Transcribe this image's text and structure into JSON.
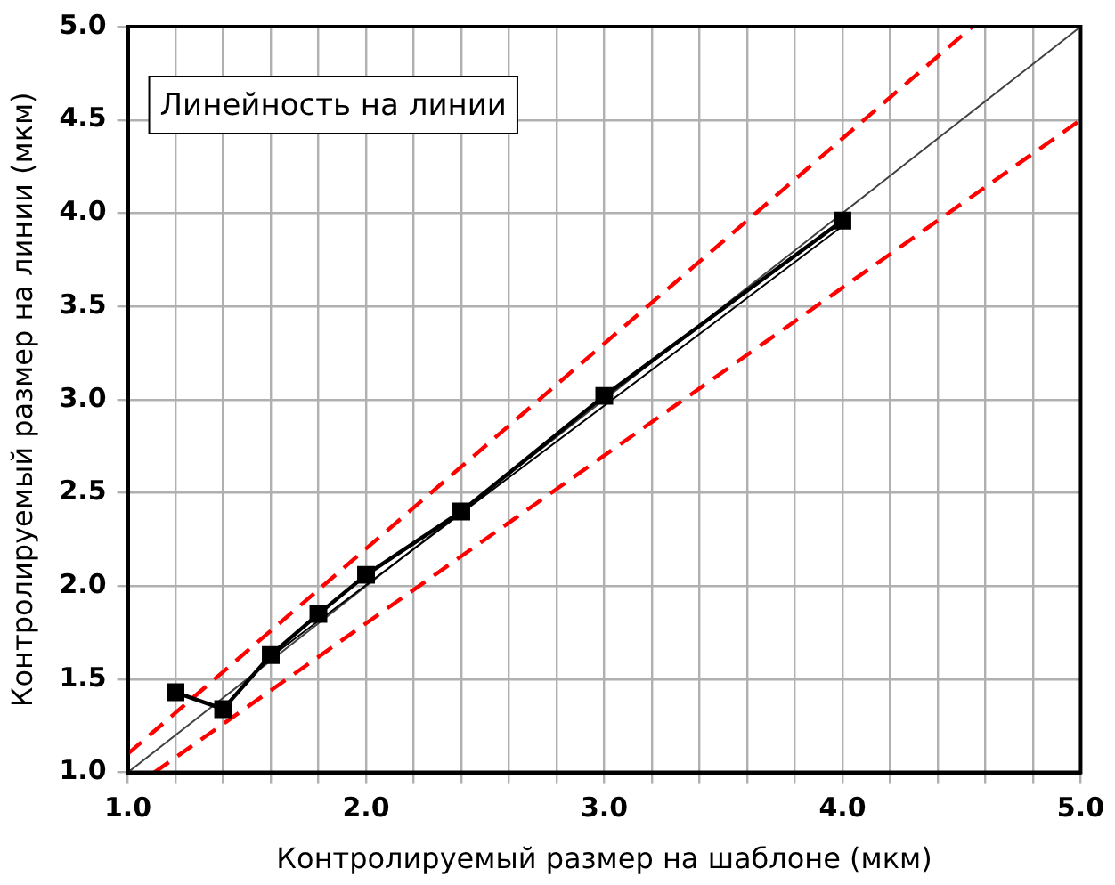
{
  "chart_data": {
    "type": "line",
    "xlabel": "Контролируемый размер на шаблоне (мкм)",
    "ylabel": "Контролируемый размер на линии (мкм)",
    "annotations": [
      "Линейность на линии"
    ],
    "xlim": [
      1.0,
      5.0
    ],
    "ylim": [
      1.0,
      5.0
    ],
    "xticks": [
      {
        "value": 1,
        "label": "1.0"
      },
      {
        "value": 1.2,
        "label": null
      },
      {
        "value": 1.4,
        "label": null
      },
      {
        "value": 1.6,
        "label": null
      },
      {
        "value": 1.8,
        "label": null
      },
      {
        "value": 2,
        "label": "2.0"
      },
      {
        "value": 2.2,
        "label": null
      },
      {
        "value": 2.4,
        "label": null
      },
      {
        "value": 2.6,
        "label": null
      },
      {
        "value": 2.8,
        "label": null
      },
      {
        "value": 3,
        "label": "3.0"
      },
      {
        "value": 3.2,
        "label": null
      },
      {
        "value": 3.4,
        "label": null
      },
      {
        "value": 3.6,
        "label": null
      },
      {
        "value": 3.8,
        "label": null
      },
      {
        "value": 4,
        "label": "4.0"
      },
      {
        "value": 4.2,
        "label": null
      },
      {
        "value": 4.4,
        "label": null
      },
      {
        "value": 4.6,
        "label": null
      },
      {
        "value": 4.8,
        "label": null
      },
      {
        "value": 5,
        "label": "5.0"
      }
    ],
    "yticks": [
      {
        "value": 1,
        "label": "1.0"
      },
      {
        "value": 1.5,
        "label": "1.5"
      },
      {
        "value": 2,
        "label": "2.0"
      },
      {
        "value": 2.5,
        "label": "2.5"
      },
      {
        "value": 3,
        "label": "3.0"
      },
      {
        "value": 3.5,
        "label": "3.5"
      },
      {
        "value": 4,
        "label": "4.0"
      },
      {
        "value": 4.5,
        "label": "4.5"
      },
      {
        "value": 5,
        "label": "5.0"
      }
    ],
    "grid": true,
    "legend": false,
    "series": [
      {
        "color": "#404040",
        "x": [
          1.0,
          5.0
        ],
        "values": [
          1.0,
          5.0
        ],
        "marker": "none",
        "line_style": "solid"
      },
      {
        "color": "#ff0000",
        "x": [
          1.0,
          4.545
        ],
        "values": [
          1.1,
          5.0
        ],
        "marker": "none",
        "line_style": "dashed"
      },
      {
        "color": "#ff0000",
        "x": [
          1.111,
          5.0
        ],
        "values": [
          1.0,
          4.5
        ],
        "marker": "none",
        "line_style": "dashed"
      },
      {
        "color": "#000000",
        "x": [
          1.6,
          4.0
        ],
        "values": [
          1.62,
          3.93
        ],
        "marker": "none",
        "line_style": "solid"
      },
      {
        "color": "#000000",
        "x": [
          1.2,
          1.4,
          1.6,
          1.8,
          2.0,
          2.4,
          3.0,
          4.0
        ],
        "values": [
          1.43,
          1.34,
          1.63,
          1.85,
          2.06,
          2.4,
          3.02,
          3.96
        ],
        "marker": "square",
        "line_style": "solid"
      }
    ]
  }
}
